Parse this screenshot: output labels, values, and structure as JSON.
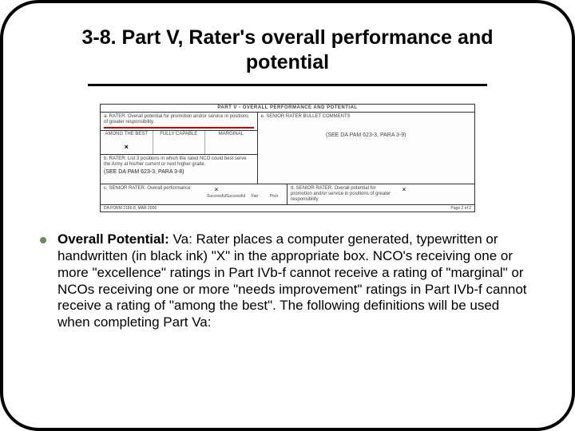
{
  "slide": {
    "title": "3-8. Part V, Rater's overall performance and potential",
    "form": {
      "header": "PART V - OVERALL PERFORMANCE AND POTENTIAL",
      "secA_label": "a. RATER. Overall potential for promotion and/or service in positions of greater responsibility.",
      "col1": "AMONG THE BEST",
      "col2": "FULLY CAPABLE",
      "col3": "MARGINAL",
      "secB_label": "b. RATER. List 3 positions in which the rated NCO could best serve the Army at his/her current or next higher grade.",
      "ref_left": "(SEE DA PAM 623-3, PARA 3-8)",
      "secC_label": "e. SENIOR RATER BULLET COMMENTS",
      "ref_right": "(SEE DA PAM 623-3, PARA 3-9)",
      "secD_label": "c. SENIOR RATER. Overall performance",
      "chk1": "Successful",
      "chk2": "Successful",
      "chk3": "Fair",
      "chk4": "Poor",
      "secE_label": "d. SENIOR RATER. Overall potential for promotion and/or service in positions of greater responsibility",
      "footer_left": "DA FORM 2166-8, MAR 2006",
      "footer_right": "Page 2 of 2"
    },
    "body": {
      "lead": "Overall Potential:",
      "text": " Va: Rater places a computer generated, typewritten or handwritten (in black ink) \"X\" in the appropriate box. NCO's receiving one or more \"excellence\" ratings in Part IVb-f cannot receive a rating of \"marginal\" or NCOs receiving one or more \"needs improvement\" ratings in Part IVb-f cannot receive a rating of \"among the best\". The following definitions will be used when completing Part Va:"
    },
    "colors": {
      "border": "#000000",
      "background": "#ffffff",
      "text": "#000000",
      "redline": "#cc0000",
      "bullet": "#6a8a5a"
    }
  }
}
